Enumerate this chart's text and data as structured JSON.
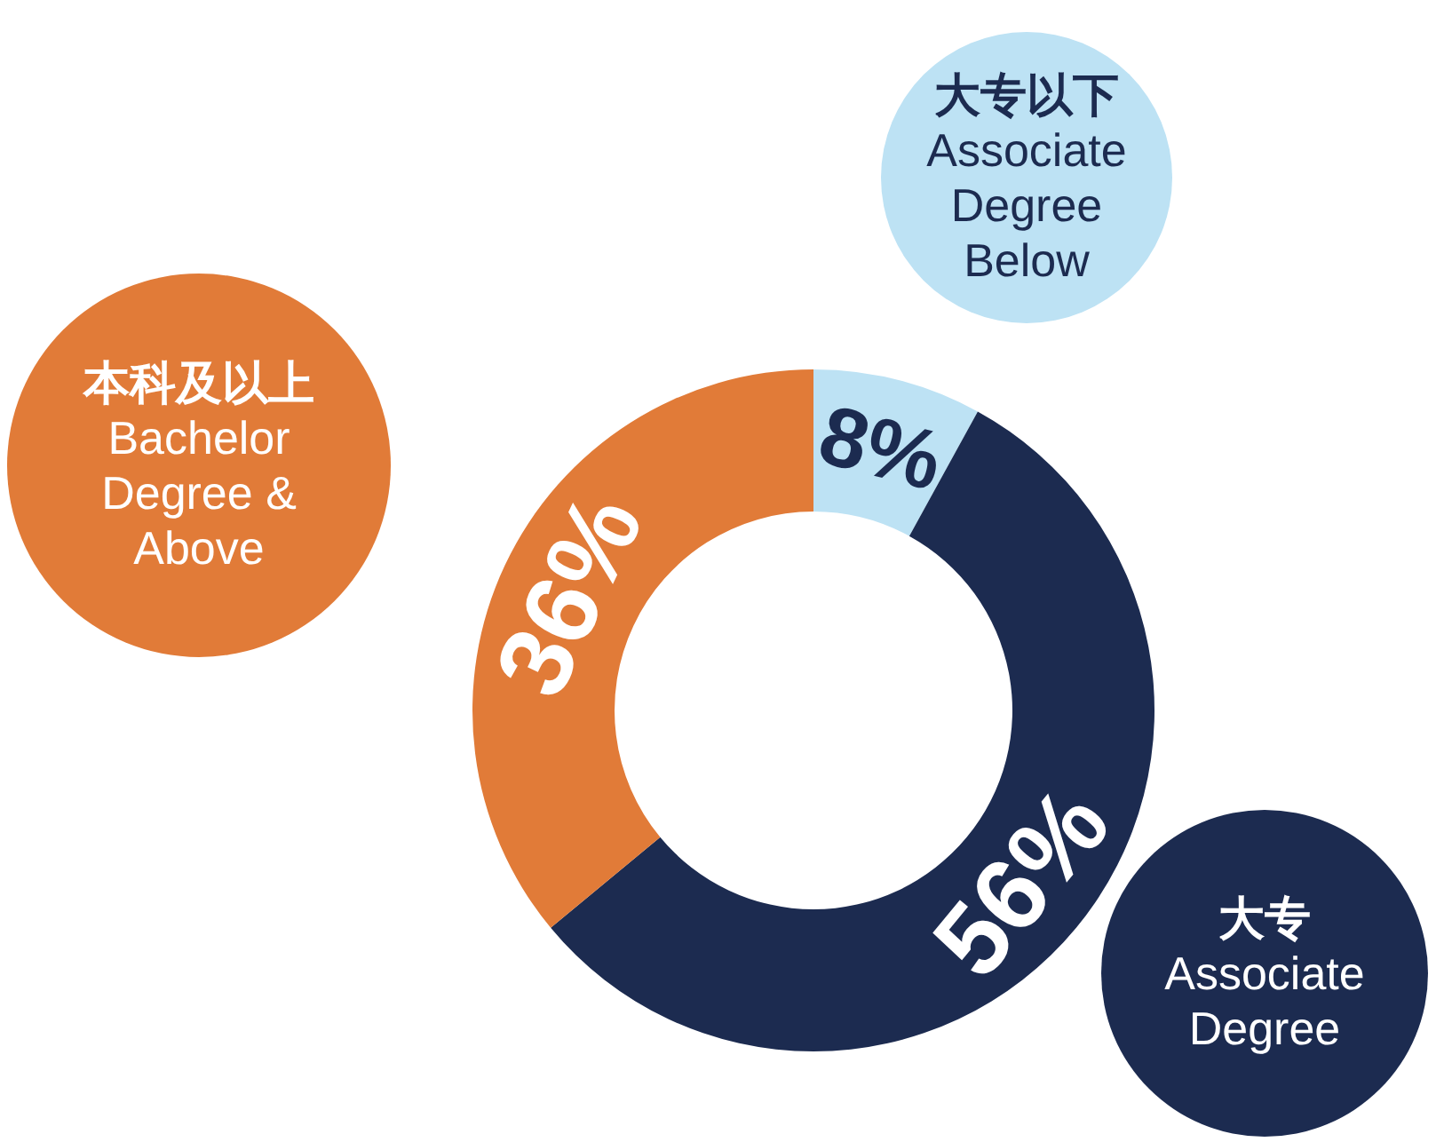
{
  "chart_data": {
    "type": "donut",
    "categories": [
      "大专以下 Associate Degree Below",
      "大专 Associate Degree",
      "本科及以上 Bachelor Degree & Above"
    ],
    "values": [
      8,
      56,
      36
    ],
    "colors": [
      "#bde2f4",
      "#1c2b50",
      "#e17b38"
    ],
    "value_labels": [
      "8%",
      "56%",
      "36%"
    ]
  }
}
